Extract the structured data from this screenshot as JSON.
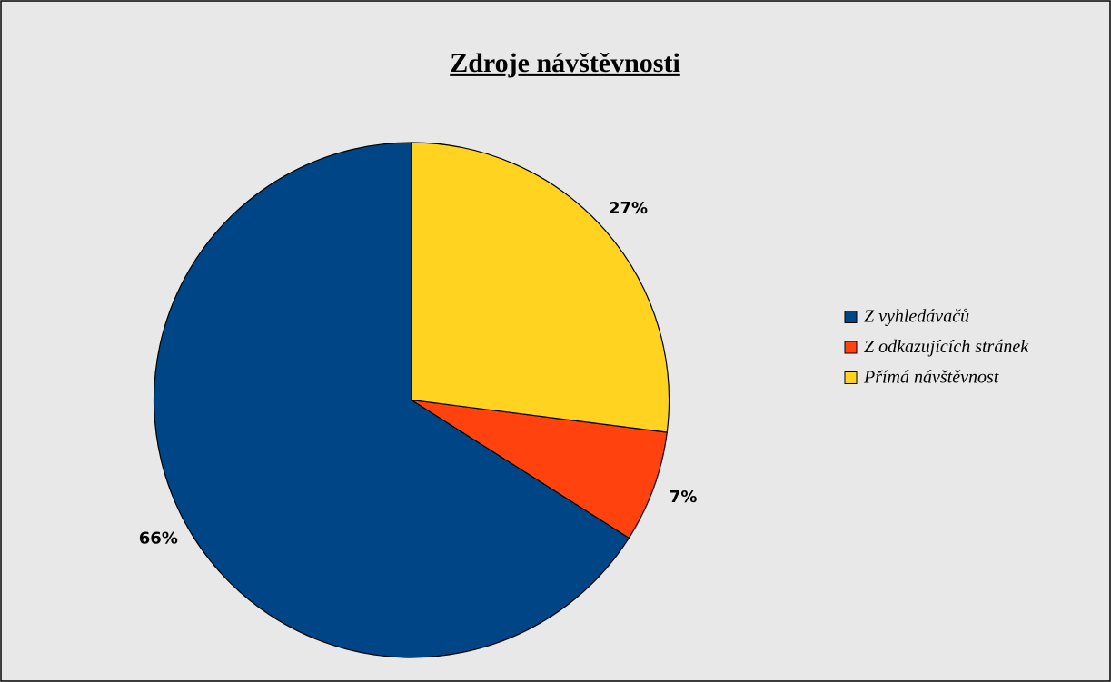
{
  "chart_data": {
    "type": "pie",
    "title": "Zdroje návštěvnosti",
    "categories": [
      "Z vyhledávačů",
      "Z odkazujících stránek",
      "Přímá návštěvnost"
    ],
    "values": [
      66,
      7,
      27
    ],
    "value_labels": [
      "66%",
      "7%",
      "27%"
    ],
    "colors": [
      "#004586",
      "#ff420e",
      "#ffd320"
    ],
    "legend": "right"
  }
}
